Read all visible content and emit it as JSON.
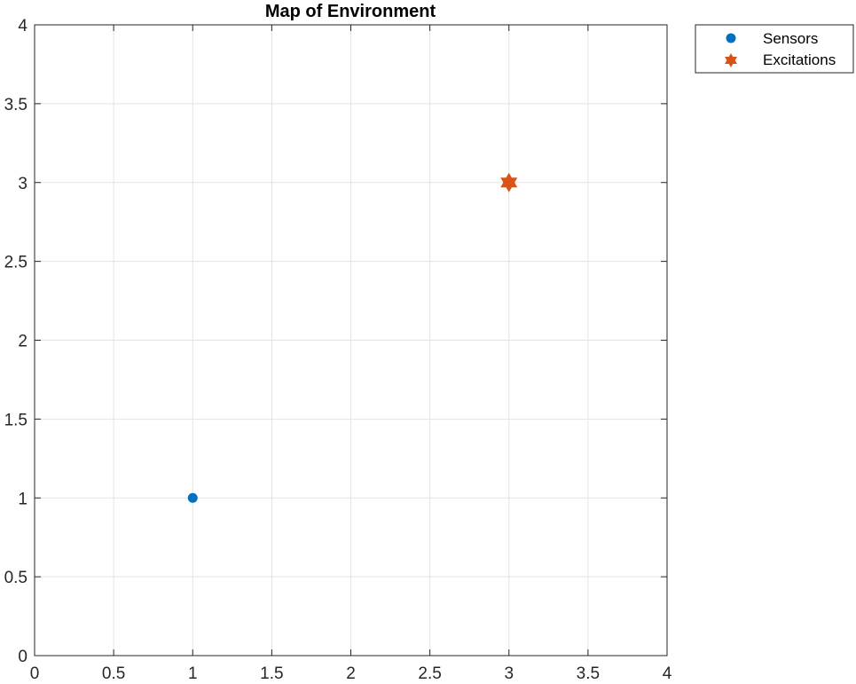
{
  "chart_data": {
    "type": "scatter",
    "title": "Map of Environment",
    "xlabel": "",
    "ylabel": "",
    "xlim": [
      0,
      4
    ],
    "ylim": [
      0,
      4
    ],
    "xticks": [
      0,
      0.5,
      1,
      1.5,
      2,
      2.5,
      3,
      3.5,
      4
    ],
    "yticks": [
      0,
      0.5,
      1,
      1.5,
      2,
      2.5,
      3,
      3.5,
      4
    ],
    "xtick_labels": [
      "0",
      "0.5",
      "1",
      "1.5",
      "2",
      "2.5",
      "3",
      "3.5",
      "4"
    ],
    "ytick_labels": [
      "0",
      "0.5",
      "1",
      "1.5",
      "2",
      "2.5",
      "3",
      "3.5",
      "4"
    ],
    "grid": true,
    "legend_position": "outside-top-right",
    "series": [
      {
        "name": "Sensors",
        "marker": "circle",
        "color": "#0072BD",
        "points": [
          {
            "x": 1,
            "y": 1
          }
        ]
      },
      {
        "name": "Excitations",
        "marker": "hexagram",
        "color": "#D95319",
        "points": [
          {
            "x": 3,
            "y": 3
          }
        ]
      }
    ]
  }
}
